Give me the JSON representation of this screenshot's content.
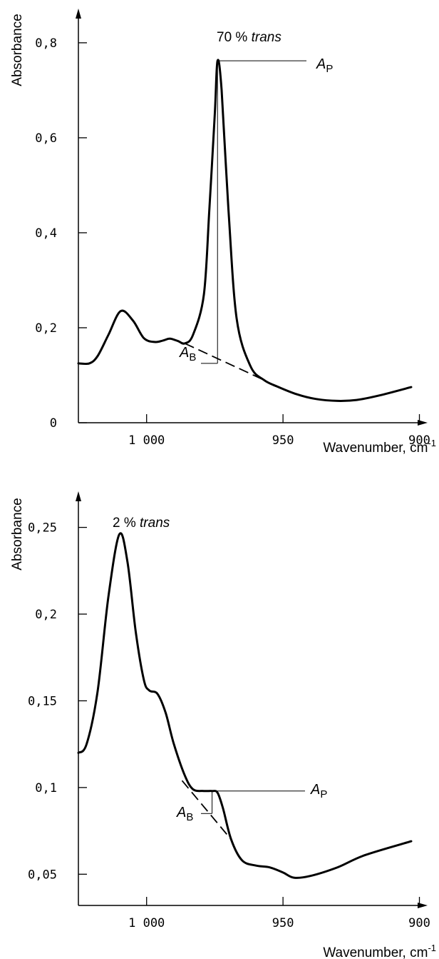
{
  "chart_data": [
    {
      "type": "line",
      "annotation": "70 % ",
      "annotation_italic": "trans",
      "ylabel": "Absorbance",
      "xlabel": "Wavenumber, cm",
      "xlabel_sup": "-1",
      "x_reversed": true,
      "xlim": [
        1025,
        897
      ],
      "ylim": [
        0,
        0.86
      ],
      "xticks": [
        {
          "value": 1000,
          "label": "1 000"
        },
        {
          "value": 950,
          "label": "950"
        },
        {
          "value": 900,
          "label": "900"
        }
      ],
      "yticks": [
        {
          "value": 0,
          "label": "0"
        },
        {
          "value": 0.2,
          "label": "0,2"
        },
        {
          "value": 0.4,
          "label": "0,4"
        },
        {
          "value": 0.6,
          "label": "0,6"
        },
        {
          "value": 0.8,
          "label": "0,8"
        }
      ],
      "series": [
        {
          "values": [
            [
              1025,
              0.125
            ],
            [
              1021,
              0.125
            ],
            [
              1018,
              0.14
            ],
            [
              1014,
              0.185
            ],
            [
              1009.5,
              0.235
            ],
            [
              1005,
              0.215
            ],
            [
              1001,
              0.178
            ],
            [
              997,
              0.17
            ],
            [
              994,
              0.173
            ],
            [
              991.5,
              0.177
            ],
            [
              988.5,
              0.172
            ],
            [
              986,
              0.167
            ],
            [
              983,
              0.185
            ],
            [
              979,
              0.27
            ],
            [
              977,
              0.45
            ],
            [
              975,
              0.65
            ],
            [
              974,
              0.762
            ],
            [
              972.5,
              0.7
            ],
            [
              970,
              0.45
            ],
            [
              967,
              0.22
            ],
            [
              962,
              0.12
            ],
            [
              957,
              0.09
            ],
            [
              952,
              0.076
            ],
            [
              945,
              0.06
            ],
            [
              938,
              0.05
            ],
            [
              930,
              0.046
            ],
            [
              923,
              0.048
            ],
            [
              915,
              0.057
            ],
            [
              903,
              0.075
            ]
          ]
        }
      ],
      "baseline": [
        [
          986,
          0.167
        ],
        [
          957,
          0.09
        ]
      ],
      "peak_marker": {
        "x": 974,
        "y": 0.762,
        "baseline_y": 0.125
      },
      "labels": {
        "peak": "A",
        "peak_sub": "P",
        "base": "A",
        "base_sub": "B"
      }
    },
    {
      "type": "line",
      "annotation": "2 % ",
      "annotation_italic": "trans",
      "ylabel": "Absorbance",
      "xlabel": "Wavenumber, cm",
      "xlabel_sup": "-1",
      "x_reversed": true,
      "xlim": [
        1025,
        897
      ],
      "ylim": [
        0.032,
        0.27
      ],
      "xticks": [
        {
          "value": 1000,
          "label": "1 000"
        },
        {
          "value": 950,
          "label": "950"
        },
        {
          "value": 900,
          "label": "900"
        }
      ],
      "yticks": [
        {
          "value": 0.05,
          "label": "0,05"
        },
        {
          "value": 0.1,
          "label": "0,1"
        },
        {
          "value": 0.15,
          "label": "0,15"
        },
        {
          "value": 0.2,
          "label": "0,2"
        },
        {
          "value": 0.25,
          "label": "0,25"
        }
      ],
      "series": [
        {
          "values": [
            [
              1025,
              0.12
            ],
            [
              1022,
              0.125
            ],
            [
              1018,
              0.155
            ],
            [
              1014,
              0.21
            ],
            [
              1010,
              0.246
            ],
            [
              1007,
              0.23
            ],
            [
              1004,
              0.19
            ],
            [
              1001,
              0.162
            ],
            [
              999,
              0.156
            ],
            [
              996,
              0.154
            ],
            [
              993,
              0.143
            ],
            [
              990,
              0.125
            ],
            [
              986,
              0.107
            ],
            [
              983,
              0.099
            ],
            [
              979,
              0.098
            ],
            [
              976,
              0.098
            ],
            [
              974,
              0.097
            ],
            [
              972,
              0.088
            ],
            [
              969,
              0.07
            ],
            [
              965,
              0.058
            ],
            [
              960,
              0.055
            ],
            [
              955,
              0.054
            ],
            [
              950,
              0.051
            ],
            [
              946,
              0.048
            ],
            [
              940,
              0.049
            ],
            [
              930,
              0.054
            ],
            [
              920,
              0.061
            ],
            [
              903,
              0.069
            ]
          ]
        }
      ],
      "baseline": [
        [
          987,
          0.104
        ],
        [
          969,
          0.07
        ]
      ],
      "peak_marker": {
        "x": 976,
        "y": 0.098,
        "baseline_y": 0.085
      },
      "labels": {
        "peak": "A",
        "peak_sub": "P",
        "base": "A",
        "base_sub": "B"
      }
    }
  ]
}
